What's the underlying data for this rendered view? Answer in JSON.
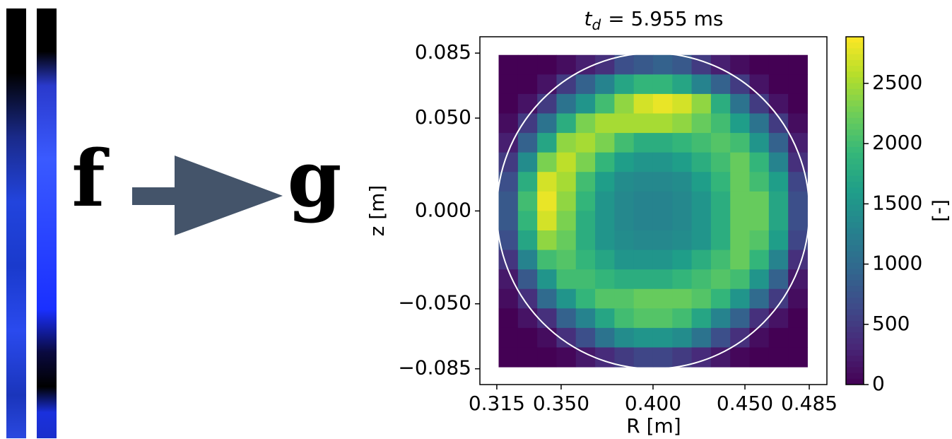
{
  "diagram": {
    "input_label": "f",
    "output_label": "g"
  },
  "chart_data": {
    "type": "heatmap",
    "title": {
      "symbol": "t",
      "subscript": "d",
      "text": "= 5.955 ms"
    },
    "x_label": "R [m]",
    "y_label": "z [m]",
    "colorbar_label": "[-]",
    "xlim": [
      0.3058,
      0.4946
    ],
    "ylim": [
      -0.0935,
      0.0938
    ],
    "xticks": [
      0.315,
      {
        "value": 0.35,
        "label": "0.350"
      },
      {
        "value": 0.4,
        "label": "0.400"
      },
      {
        "value": 0.45,
        "label": "0.450"
      },
      0.485
    ],
    "yticks": [
      0.085,
      {
        "value": 0.05,
        "label": "0.050"
      },
      {
        "value": 0,
        "label": "0.000"
      },
      {
        "value": -0.05,
        "label": "−0.050"
      },
      {
        "value": -0.085,
        "label": "−0.085"
      }
    ],
    "clim": [
      0,
      2887
    ],
    "cticks": [
      0,
      500,
      1000,
      1500,
      2000,
      2500
    ],
    "colormap": "viridis",
    "x_extent": [
      0.316,
      0.484
    ],
    "y_extent": [
      -0.084,
      0.084
    ],
    "vessel": {
      "center": [
        0.4,
        0
      ],
      "radius": 0.085,
      "color": "#ffffff"
    },
    "z": [
      [
        0,
        0,
        0,
        100,
        250,
        400,
        700,
        800,
        900,
        800,
        500,
        250,
        100,
        0,
        0,
        0
      ],
      [
        0,
        0,
        150,
        500,
        900,
        1300,
        1700,
        1900,
        1900,
        1700,
        1300,
        900,
        500,
        150,
        0,
        0
      ],
      [
        0,
        150,
        500,
        1100,
        1500,
        2000,
        2400,
        2700,
        2800,
        2700,
        2400,
        1800,
        1100,
        500,
        150,
        0
      ],
      [
        100,
        500,
        1100,
        1800,
        2300,
        2500,
        2500,
        2500,
        2500,
        2400,
        2200,
        2000,
        1600,
        1100,
        500,
        100
      ],
      [
        250,
        900,
        1700,
        2400,
        2500,
        2300,
        2000,
        1800,
        1800,
        1900,
        2000,
        2100,
        2000,
        1500,
        900,
        250
      ],
      [
        500,
        1400,
        2300,
        2600,
        2300,
        1900,
        1600,
        1500,
        1500,
        1600,
        1800,
        2000,
        2200,
        1900,
        1300,
        400
      ],
      [
        700,
        1800,
        2700,
        2500,
        2000,
        1600,
        1400,
        1350,
        1350,
        1400,
        1600,
        1900,
        2200,
        2000,
        1600,
        600
      ],
      [
        800,
        2000,
        2800,
        2400,
        1900,
        1500,
        1350,
        1300,
        1300,
        1350,
        1500,
        1800,
        2200,
        2200,
        1700,
        700
      ],
      [
        800,
        1900,
        2700,
        2300,
        1800,
        1500,
        1350,
        1300,
        1300,
        1350,
        1500,
        1800,
        2200,
        2200,
        1700,
        700
      ],
      [
        700,
        1700,
        2400,
        2200,
        1800,
        1500,
        1400,
        1350,
        1350,
        1400,
        1500,
        1800,
        2200,
        2100,
        1600,
        600
      ],
      [
        450,
        1300,
        2000,
        2100,
        1900,
        1700,
        1500,
        1500,
        1500,
        1600,
        1800,
        2000,
        2200,
        1900,
        1300,
        400
      ],
      [
        200,
        800,
        1500,
        2000,
        2000,
        1900,
        1800,
        1800,
        1800,
        1900,
        2000,
        2100,
        2000,
        1500,
        900,
        200
      ],
      [
        100,
        400,
        1000,
        1500,
        1900,
        2100,
        2100,
        2200,
        2200,
        2200,
        2100,
        1900,
        1500,
        1000,
        500,
        100
      ],
      [
        0,
        150,
        400,
        900,
        1300,
        1700,
        2000,
        2100,
        2100,
        2000,
        1700,
        1300,
        900,
        400,
        150,
        0
      ],
      [
        0,
        0,
        100,
        400,
        700,
        1100,
        1400,
        1500,
        1500,
        1400,
        1100,
        700,
        400,
        100,
        0,
        0
      ],
      [
        0,
        0,
        0,
        50,
        200,
        350,
        500,
        600,
        600,
        500,
        350,
        200,
        50,
        0,
        0,
        0
      ]
    ]
  }
}
